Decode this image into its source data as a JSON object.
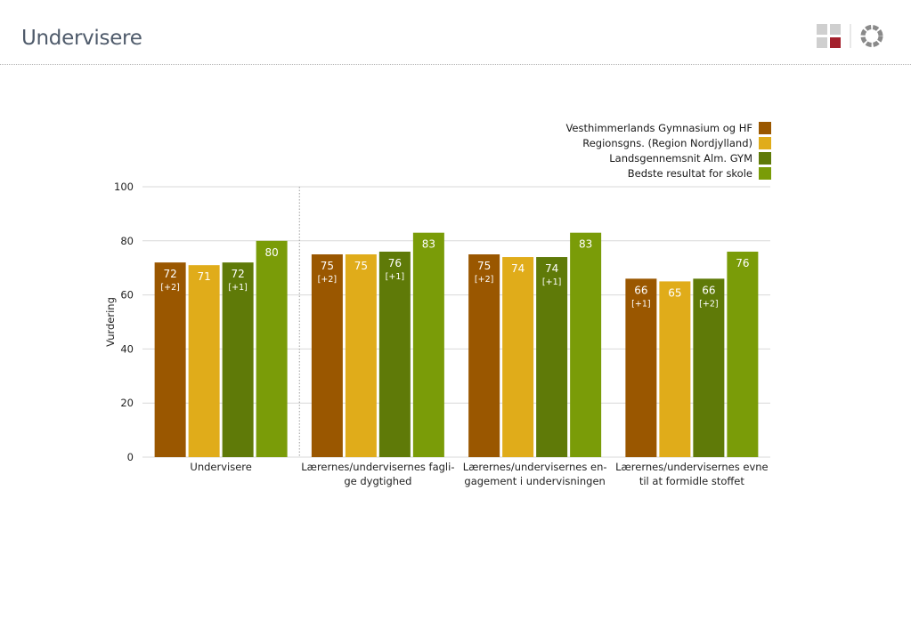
{
  "page": {
    "title": "Undervisere"
  },
  "colors": {
    "series": [
      "#9a5700",
      "#e0ac1a",
      "#5f7a08",
      "#7a9c08"
    ],
    "grid": "#d9d9d9",
    "separator": "#9e9e9e",
    "label_on_dark": "#ffffff",
    "label_dark": "#333333"
  },
  "chart_data": {
    "type": "bar",
    "title": "",
    "ylabel": "Vurdering",
    "xlabel": "",
    "ylim": [
      0,
      100
    ],
    "yticks": [
      0,
      20,
      40,
      60,
      80,
      100
    ],
    "grid": true,
    "legend_position": "top-right",
    "categories": [
      [
        "Undervisere"
      ],
      [
        "Lærernes/undervisernes fagli-",
        "ge dygtighed"
      ],
      [
        "Lærernes/undervisernes en-",
        "gagement i undervisningen"
      ],
      [
        "Lærernes/undervisernes evne",
        "til at formidle stoffet"
      ]
    ],
    "series": [
      {
        "name": "Vesthimmerlands Gymnasium og HF",
        "values": [
          72,
          75,
          75,
          66
        ],
        "notes": [
          "[+2]",
          "[+2]",
          "[+2]",
          "[+1]"
        ]
      },
      {
        "name": "Regionsgns. (Region Nordjylland)",
        "values": [
          71,
          75,
          74,
          65
        ],
        "notes": [
          "",
          "",
          "",
          ""
        ]
      },
      {
        "name": "Landsgennemsnit Alm. GYM",
        "values": [
          72,
          76,
          74,
          66
        ],
        "notes": [
          "[+1]",
          "[+1]",
          "[+1]",
          "[+2]"
        ]
      },
      {
        "name": "Bedste resultat for skole",
        "values": [
          80,
          83,
          83,
          76
        ],
        "notes": [
          "",
          "",
          "",
          ""
        ]
      }
    ]
  }
}
